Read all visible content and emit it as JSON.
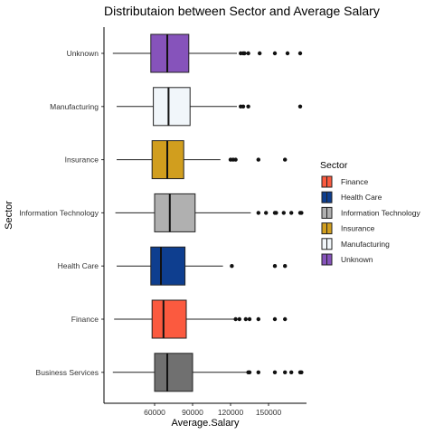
{
  "chart_data": {
    "type": "boxplot",
    "title": "Distributaion between Sector and Average Salary",
    "xlabel": "Average.Salary",
    "ylabel": "Sector",
    "xlim": [
      20000,
      180000
    ],
    "xticks": [
      60000,
      90000,
      120000,
      150000
    ],
    "xtick_labels": [
      "60000",
      "90000",
      "120000",
      "150000"
    ],
    "grid": false,
    "categories": [
      "Business Services",
      "Finance",
      "Health Care",
      "Information Technology",
      "Insurance",
      "Manufacturing",
      "Unknown"
    ],
    "series": [
      {
        "category": "Business Services",
        "whisker_low": 27000,
        "q1": 60000,
        "median": 70000,
        "q3": 90000,
        "whisker_high": 133000,
        "outliers": [
          134000,
          135000,
          142000,
          155000,
          163000,
          168000,
          175000,
          176000
        ],
        "color": "#707070"
      },
      {
        "category": "Finance",
        "whisker_low": 28000,
        "q1": 58000,
        "median": 67000,
        "q3": 85000,
        "whisker_high": 123000,
        "outliers": [
          124000,
          127000,
          132000,
          135000,
          142000,
          155000,
          163000
        ],
        "color": "#fb5a3f"
      },
      {
        "category": "Health Care",
        "whisker_low": 30000,
        "q1": 57000,
        "median": 65000,
        "q3": 84000,
        "whisker_high": 114000,
        "outliers": [
          121000,
          155000,
          163000
        ],
        "color": "#0e3e8f"
      },
      {
        "category": "Information Technology",
        "whisker_low": 29000,
        "q1": 60000,
        "median": 72000,
        "q3": 92000,
        "whisker_high": 136000,
        "outliers": [
          142000,
          148000,
          155000,
          156000,
          162000,
          168000,
          175000,
          176000
        ],
        "color": "#b0b0b0"
      },
      {
        "category": "Insurance",
        "whisker_low": 30000,
        "q1": 58000,
        "median": 70000,
        "q3": 83000,
        "whisker_high": 112000,
        "outliers": [
          120000,
          122000,
          124000,
          142000,
          163000
        ],
        "color": "#d19e1e"
      },
      {
        "category": "Manufacturing",
        "whisker_low": 30000,
        "q1": 59000,
        "median": 71000,
        "q3": 88000,
        "whisker_high": 125000,
        "outliers": [
          128000,
          130000,
          134000,
          175000
        ],
        "color": "#f1f6fa"
      },
      {
        "category": "Unknown",
        "whisker_low": 27000,
        "q1": 57000,
        "median": 70000,
        "q3": 87000,
        "whisker_high": 125000,
        "outliers": [
          128000,
          130000,
          131000,
          134000,
          143000,
          155000,
          165000,
          175000
        ],
        "color": "#8653bb"
      }
    ],
    "legend": {
      "title": "Sector",
      "position": "right",
      "items": [
        {
          "label": "Finance",
          "color": "#fb5a3f"
        },
        {
          "label": "Health Care",
          "color": "#0e3e8f"
        },
        {
          "label": "Information Technology",
          "color": "#b0b0b0"
        },
        {
          "label": "Insurance",
          "color": "#d19e1e"
        },
        {
          "label": "Manufacturing",
          "color": "#f1f6fa"
        },
        {
          "label": "Unknown",
          "color": "#8653bb"
        }
      ]
    }
  }
}
